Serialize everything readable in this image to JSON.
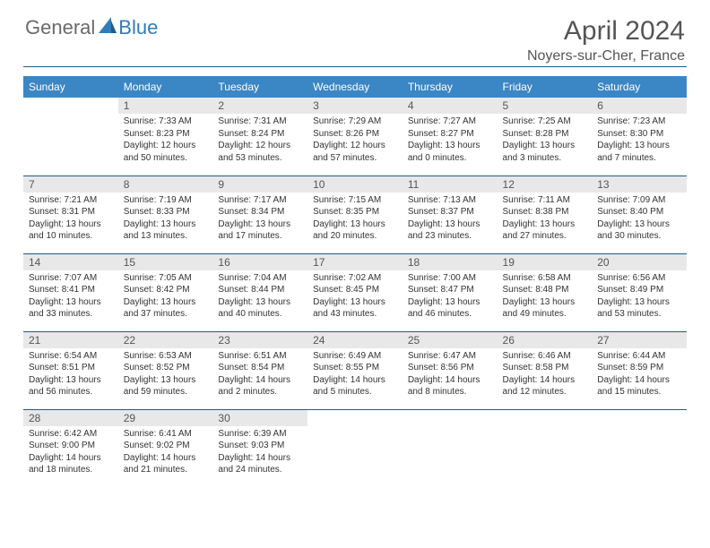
{
  "logo": {
    "text_gray": "General",
    "text_blue": "Blue"
  },
  "title": "April 2024",
  "location": "Noyers-sur-Cher, France",
  "weekdays": [
    "Sunday",
    "Monday",
    "Tuesday",
    "Wednesday",
    "Thursday",
    "Friday",
    "Saturday"
  ],
  "colors": {
    "header_bg": "#3b86c4",
    "cell_border": "#1f5c8f",
    "daynum_bg": "#e8e8e8",
    "logo_gray": "#6a6a6a",
    "logo_blue": "#2f7db8"
  },
  "weeks": [
    [
      {
        "n": "",
        "sunrise": "",
        "sunset": "",
        "daylight": ""
      },
      {
        "n": "1",
        "sunrise": "Sunrise: 7:33 AM",
        "sunset": "Sunset: 8:23 PM",
        "daylight": "Daylight: 12 hours and 50 minutes."
      },
      {
        "n": "2",
        "sunrise": "Sunrise: 7:31 AM",
        "sunset": "Sunset: 8:24 PM",
        "daylight": "Daylight: 12 hours and 53 minutes."
      },
      {
        "n": "3",
        "sunrise": "Sunrise: 7:29 AM",
        "sunset": "Sunset: 8:26 PM",
        "daylight": "Daylight: 12 hours and 57 minutes."
      },
      {
        "n": "4",
        "sunrise": "Sunrise: 7:27 AM",
        "sunset": "Sunset: 8:27 PM",
        "daylight": "Daylight: 13 hours and 0 minutes."
      },
      {
        "n": "5",
        "sunrise": "Sunrise: 7:25 AM",
        "sunset": "Sunset: 8:28 PM",
        "daylight": "Daylight: 13 hours and 3 minutes."
      },
      {
        "n": "6",
        "sunrise": "Sunrise: 7:23 AM",
        "sunset": "Sunset: 8:30 PM",
        "daylight": "Daylight: 13 hours and 7 minutes."
      }
    ],
    [
      {
        "n": "7",
        "sunrise": "Sunrise: 7:21 AM",
        "sunset": "Sunset: 8:31 PM",
        "daylight": "Daylight: 13 hours and 10 minutes."
      },
      {
        "n": "8",
        "sunrise": "Sunrise: 7:19 AM",
        "sunset": "Sunset: 8:33 PM",
        "daylight": "Daylight: 13 hours and 13 minutes."
      },
      {
        "n": "9",
        "sunrise": "Sunrise: 7:17 AM",
        "sunset": "Sunset: 8:34 PM",
        "daylight": "Daylight: 13 hours and 17 minutes."
      },
      {
        "n": "10",
        "sunrise": "Sunrise: 7:15 AM",
        "sunset": "Sunset: 8:35 PM",
        "daylight": "Daylight: 13 hours and 20 minutes."
      },
      {
        "n": "11",
        "sunrise": "Sunrise: 7:13 AM",
        "sunset": "Sunset: 8:37 PM",
        "daylight": "Daylight: 13 hours and 23 minutes."
      },
      {
        "n": "12",
        "sunrise": "Sunrise: 7:11 AM",
        "sunset": "Sunset: 8:38 PM",
        "daylight": "Daylight: 13 hours and 27 minutes."
      },
      {
        "n": "13",
        "sunrise": "Sunrise: 7:09 AM",
        "sunset": "Sunset: 8:40 PM",
        "daylight": "Daylight: 13 hours and 30 minutes."
      }
    ],
    [
      {
        "n": "14",
        "sunrise": "Sunrise: 7:07 AM",
        "sunset": "Sunset: 8:41 PM",
        "daylight": "Daylight: 13 hours and 33 minutes."
      },
      {
        "n": "15",
        "sunrise": "Sunrise: 7:05 AM",
        "sunset": "Sunset: 8:42 PM",
        "daylight": "Daylight: 13 hours and 37 minutes."
      },
      {
        "n": "16",
        "sunrise": "Sunrise: 7:04 AM",
        "sunset": "Sunset: 8:44 PM",
        "daylight": "Daylight: 13 hours and 40 minutes."
      },
      {
        "n": "17",
        "sunrise": "Sunrise: 7:02 AM",
        "sunset": "Sunset: 8:45 PM",
        "daylight": "Daylight: 13 hours and 43 minutes."
      },
      {
        "n": "18",
        "sunrise": "Sunrise: 7:00 AM",
        "sunset": "Sunset: 8:47 PM",
        "daylight": "Daylight: 13 hours and 46 minutes."
      },
      {
        "n": "19",
        "sunrise": "Sunrise: 6:58 AM",
        "sunset": "Sunset: 8:48 PM",
        "daylight": "Daylight: 13 hours and 49 minutes."
      },
      {
        "n": "20",
        "sunrise": "Sunrise: 6:56 AM",
        "sunset": "Sunset: 8:49 PM",
        "daylight": "Daylight: 13 hours and 53 minutes."
      }
    ],
    [
      {
        "n": "21",
        "sunrise": "Sunrise: 6:54 AM",
        "sunset": "Sunset: 8:51 PM",
        "daylight": "Daylight: 13 hours and 56 minutes."
      },
      {
        "n": "22",
        "sunrise": "Sunrise: 6:53 AM",
        "sunset": "Sunset: 8:52 PM",
        "daylight": "Daylight: 13 hours and 59 minutes."
      },
      {
        "n": "23",
        "sunrise": "Sunrise: 6:51 AM",
        "sunset": "Sunset: 8:54 PM",
        "daylight": "Daylight: 14 hours and 2 minutes."
      },
      {
        "n": "24",
        "sunrise": "Sunrise: 6:49 AM",
        "sunset": "Sunset: 8:55 PM",
        "daylight": "Daylight: 14 hours and 5 minutes."
      },
      {
        "n": "25",
        "sunrise": "Sunrise: 6:47 AM",
        "sunset": "Sunset: 8:56 PM",
        "daylight": "Daylight: 14 hours and 8 minutes."
      },
      {
        "n": "26",
        "sunrise": "Sunrise: 6:46 AM",
        "sunset": "Sunset: 8:58 PM",
        "daylight": "Daylight: 14 hours and 12 minutes."
      },
      {
        "n": "27",
        "sunrise": "Sunrise: 6:44 AM",
        "sunset": "Sunset: 8:59 PM",
        "daylight": "Daylight: 14 hours and 15 minutes."
      }
    ],
    [
      {
        "n": "28",
        "sunrise": "Sunrise: 6:42 AM",
        "sunset": "Sunset: 9:00 PM",
        "daylight": "Daylight: 14 hours and 18 minutes."
      },
      {
        "n": "29",
        "sunrise": "Sunrise: 6:41 AM",
        "sunset": "Sunset: 9:02 PM",
        "daylight": "Daylight: 14 hours and 21 minutes."
      },
      {
        "n": "30",
        "sunrise": "Sunrise: 6:39 AM",
        "sunset": "Sunset: 9:03 PM",
        "daylight": "Daylight: 14 hours and 24 minutes."
      },
      {
        "n": "",
        "sunrise": "",
        "sunset": "",
        "daylight": ""
      },
      {
        "n": "",
        "sunrise": "",
        "sunset": "",
        "daylight": ""
      },
      {
        "n": "",
        "sunrise": "",
        "sunset": "",
        "daylight": ""
      },
      {
        "n": "",
        "sunrise": "",
        "sunset": "",
        "daylight": ""
      }
    ]
  ]
}
